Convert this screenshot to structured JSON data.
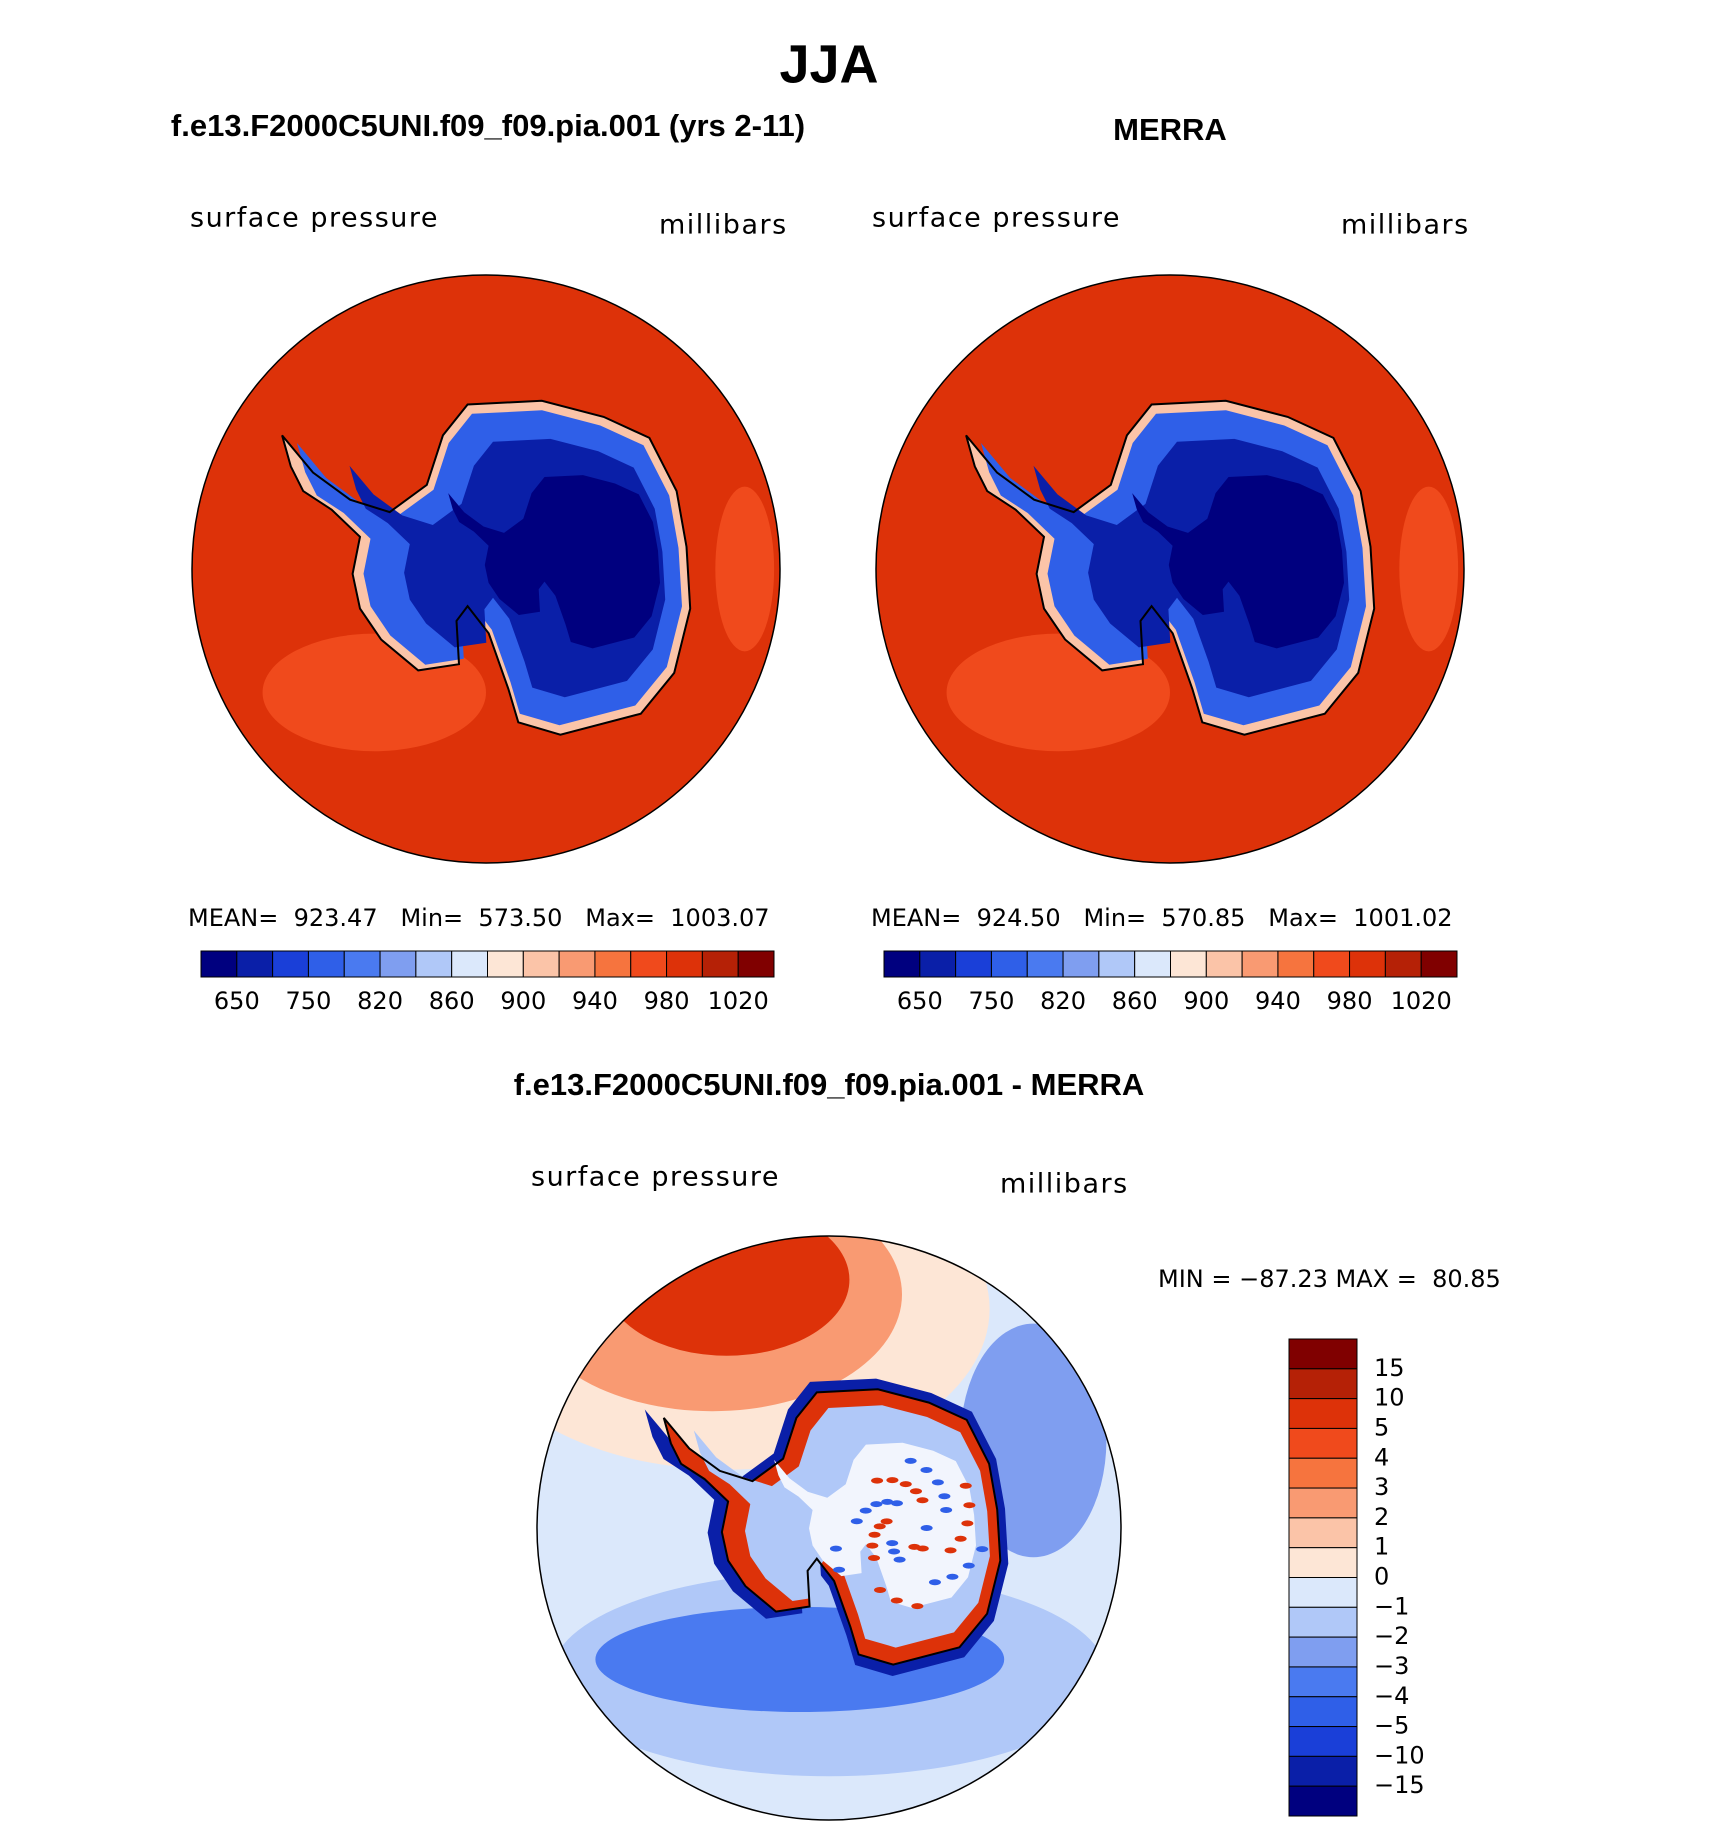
{
  "title": "JJA",
  "panels": [
    {
      "title": "f.e13.F2000C5UNI.f09_f09.pia.001 (yrs 2-11)",
      "left_label": "surface pressure",
      "right_label": "millibars",
      "stats": "MEAN=  923.47   Min=  573.50   Max=  1003.07"
    },
    {
      "title": "MERRA",
      "left_label": "surface pressure",
      "right_label": "millibars",
      "stats": "MEAN=  924.50   Min=  570.85   Max=  1001.02"
    }
  ],
  "colorbar": {
    "colors": [
      "#00007f",
      "#0a1fa8",
      "#1a3fd8",
      "#2f5fe8",
      "#4a7af0",
      "#7f9ef0",
      "#b0c8f8",
      "#dbe8fb",
      "#fde6d6",
      "#fbc4a8",
      "#f99a72",
      "#f6743e",
      "#f04a1c",
      "#dd3209",
      "#b52106",
      "#800000"
    ],
    "labels": [
      "650",
      "750",
      "820",
      "860",
      "900",
      "940",
      "980",
      "1020"
    ]
  },
  "difference": {
    "title": "f.e13.F2000C5UNI.f09_f09.pia.001 - MERRA",
    "left_label": "surface pressure",
    "right_label": "millibars",
    "stats": "MIN = −87.23 MAX =  80.85",
    "colorbar": {
      "colors": [
        "#800000",
        "#b52106",
        "#dd3209",
        "#f04a1c",
        "#f6743e",
        "#f99a72",
        "#fbc4a8",
        "#fde6d6",
        "#dbe8fb",
        "#b0c8f8",
        "#7f9ef0",
        "#4a7af0",
        "#2f5fe8",
        "#1a3fd8",
        "#0a1fa8",
        "#00007f"
      ],
      "labels": [
        "15",
        "10",
        "5",
        "4",
        "3",
        "2",
        "1",
        "0",
        "−1",
        "−2",
        "−3",
        "−4",
        "−5",
        "−10",
        "−15"
      ]
    }
  }
}
